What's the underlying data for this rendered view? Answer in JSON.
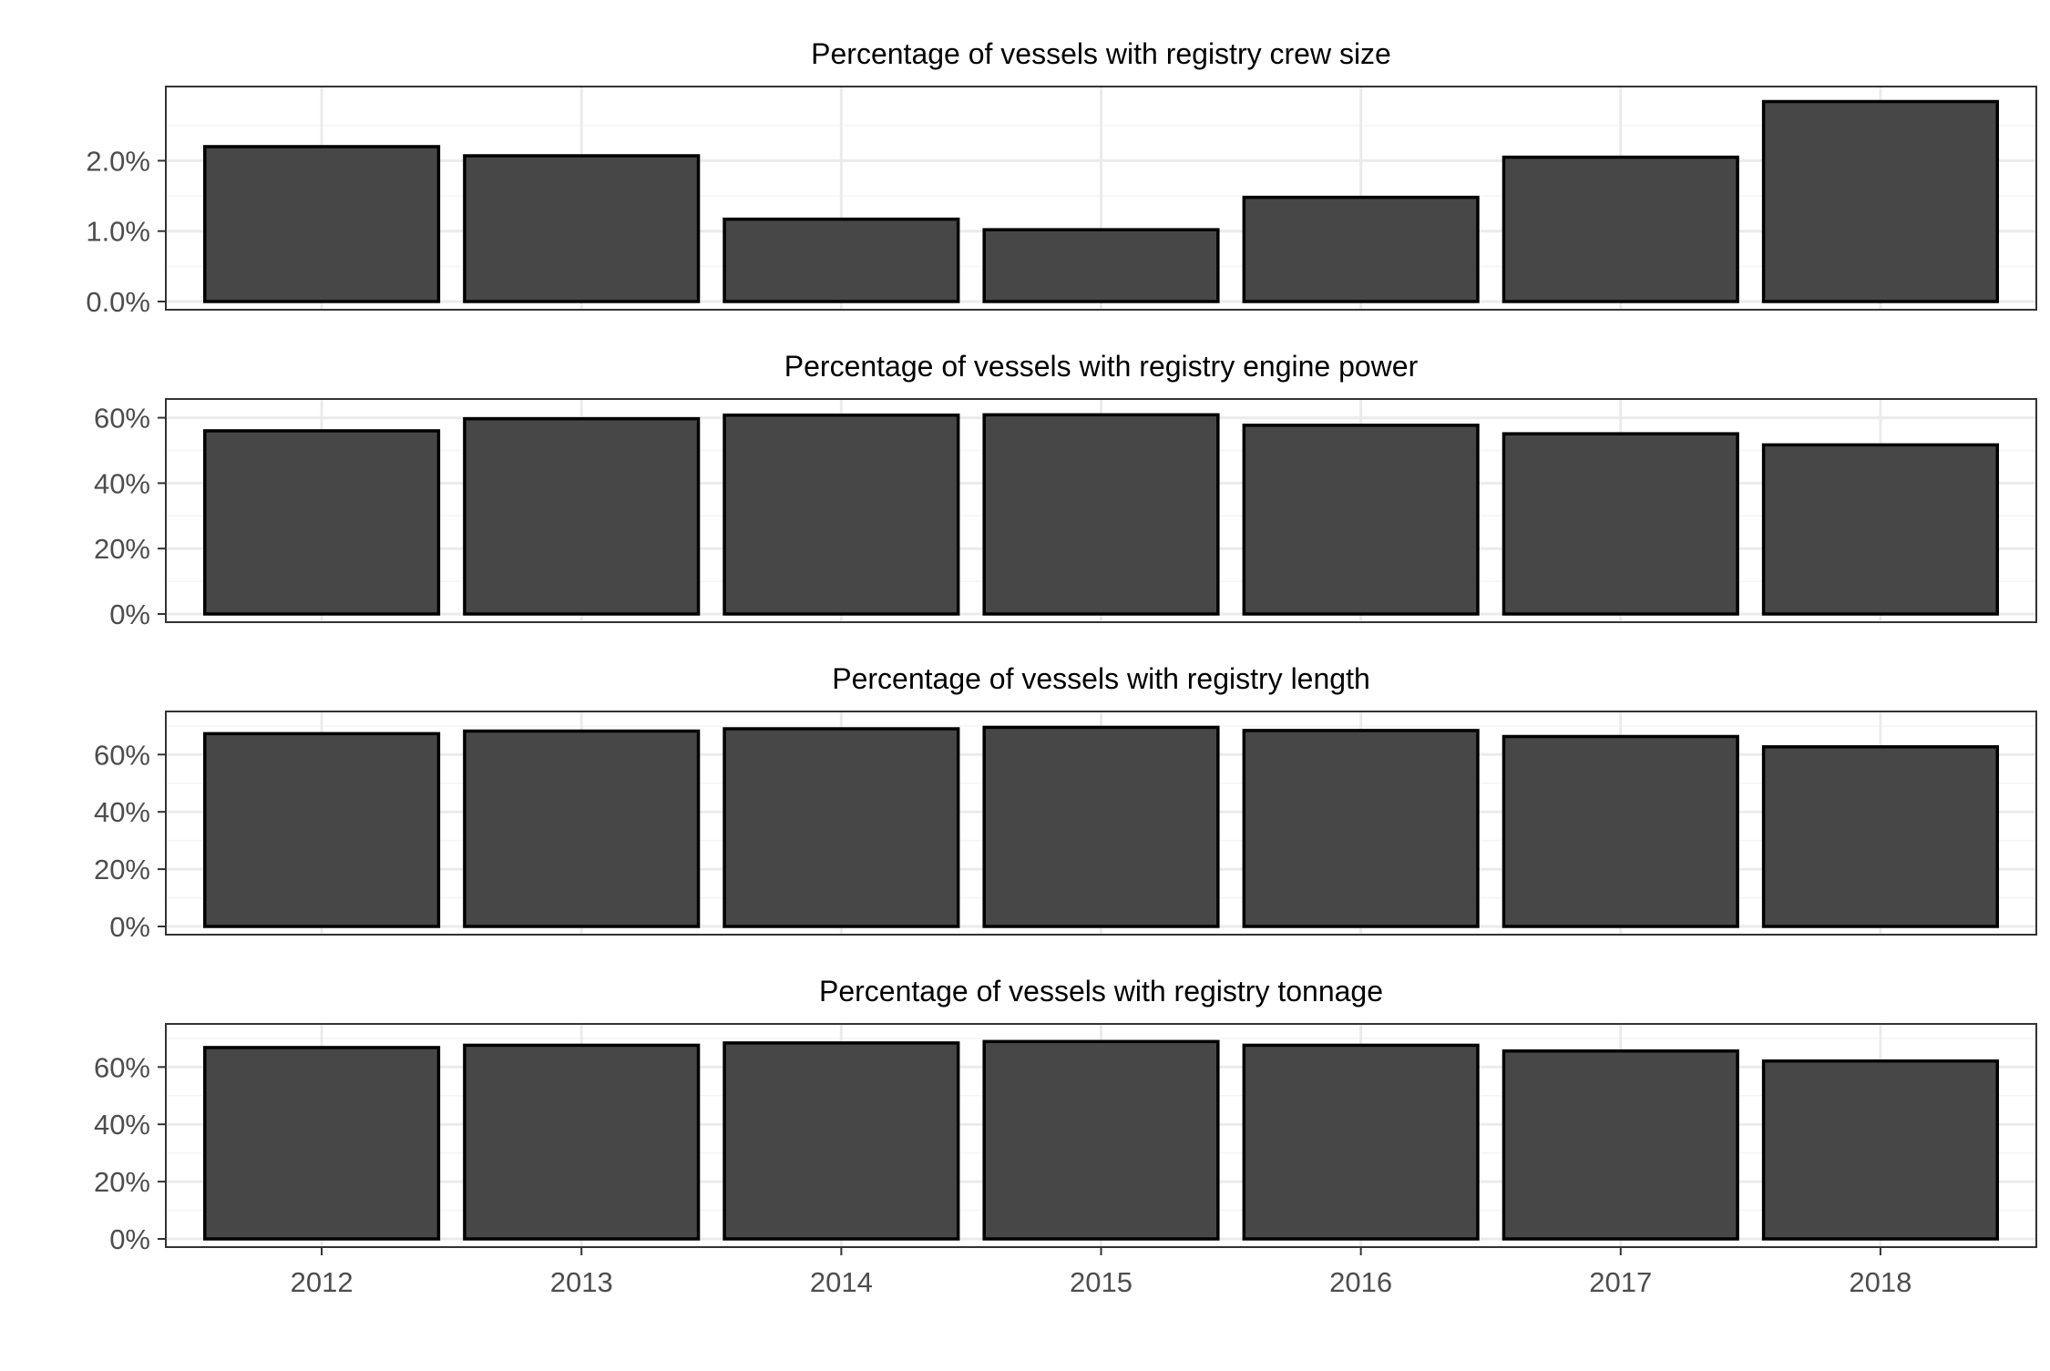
{
  "chart_data": [
    {
      "type": "bar",
      "title": "Percentage of vessels with registry crew size",
      "categories": [
        "2012",
        "2013",
        "2014",
        "2015",
        "2016",
        "2017",
        "2018"
      ],
      "values": [
        2.2,
        2.07,
        1.17,
        1.02,
        1.48,
        2.05,
        2.84
      ],
      "unit": "%",
      "ylim": [
        0,
        2.95
      ],
      "yticks": [
        0,
        1,
        2
      ],
      "ytick_labels": [
        "0.0%",
        "1.0%",
        "2.0%"
      ],
      "xlabel": "",
      "ylabel": "",
      "grid": true
    },
    {
      "type": "bar",
      "title": "Percentage of vessels with registry engine power",
      "categories": [
        "2012",
        "2013",
        "2014",
        "2015",
        "2016",
        "2017",
        "2018"
      ],
      "values": [
        56,
        59.7,
        60.8,
        60.9,
        57.7,
        55.1,
        51.7
      ],
      "unit": "%",
      "ylim": [
        0,
        63.5
      ],
      "yticks": [
        0,
        20,
        40,
        60
      ],
      "ytick_labels": [
        "0%",
        "20%",
        "40%",
        "60%"
      ],
      "xlabel": "",
      "ylabel": "",
      "grid": true
    },
    {
      "type": "bar",
      "title": "Percentage of vessels with registry length",
      "categories": [
        "2012",
        "2013",
        "2014",
        "2015",
        "2016",
        "2017",
        "2018"
      ],
      "values": [
        67.3,
        68.2,
        69,
        69.5,
        68.4,
        66.3,
        62.7
      ],
      "unit": "%",
      "ylim": [
        0,
        72.5
      ],
      "yticks": [
        0,
        20,
        40,
        60
      ],
      "ytick_labels": [
        "0%",
        "20%",
        "40%",
        "60%"
      ],
      "xlabel": "",
      "ylabel": "",
      "grid": true
    },
    {
      "type": "bar",
      "title": "Percentage of vessels with registry tonnage",
      "categories": [
        "2012",
        "2013",
        "2014",
        "2015",
        "2016",
        "2017",
        "2018"
      ],
      "values": [
        66.8,
        67.6,
        68.4,
        68.9,
        67.6,
        65.6,
        62.1
      ],
      "unit": "%",
      "ylim": [
        0,
        72.5
      ],
      "yticks": [
        0,
        20,
        40,
        60
      ],
      "ytick_labels": [
        "0%",
        "20%",
        "40%",
        "60%"
      ],
      "xlabel": "",
      "ylabel": "",
      "grid": true
    }
  ],
  "colors": {
    "bar_fill": "#474747",
    "bar_outline": "#000000",
    "grid_major": "#ebebeb",
    "grid_minor": "#f5f5f5",
    "panel_border": "#333333"
  }
}
